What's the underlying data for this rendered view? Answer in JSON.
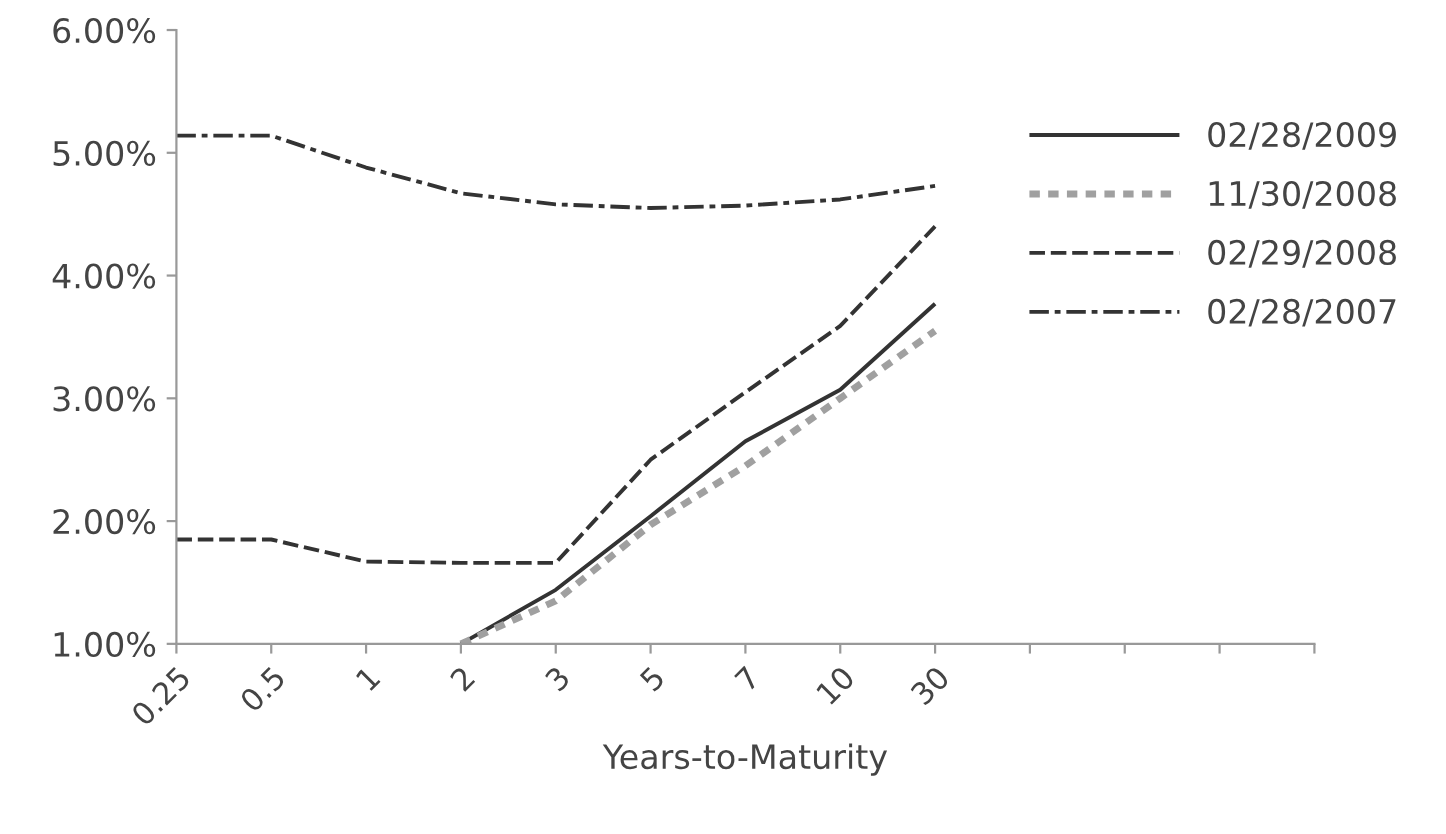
{
  "chart_data": {
    "type": "line",
    "xlabel": "Years-to-Maturity",
    "categories": [
      "0.25",
      "0.5",
      "1",
      "2",
      "3",
      "5",
      "7",
      "10",
      "30",
      null,
      null,
      null,
      null
    ],
    "series": [
      {
        "name": "02/28/2009",
        "color": "#333333",
        "line_style": "solid",
        "values": [
          null,
          null,
          null,
          1.0,
          1.44,
          2.04,
          2.65,
          3.07,
          3.77,
          null,
          null,
          null,
          null
        ]
      },
      {
        "name": "11/30/2008",
        "color": "#a0a0a0",
        "line_style": "dotted",
        "values": [
          null,
          null,
          null,
          1.0,
          1.35,
          1.97,
          2.45,
          3.0,
          3.55,
          null,
          null,
          null,
          null
        ]
      },
      {
        "name": "02/29/2008",
        "color": "#333333",
        "line_style": "dashed",
        "values": [
          1.85,
          1.85,
          1.67,
          1.66,
          1.66,
          2.5,
          3.05,
          3.59,
          4.4,
          null,
          null,
          null,
          null
        ]
      },
      {
        "name": "02/28/2007",
        "color": "#333333",
        "line_style": "dashdot",
        "values": [
          5.14,
          5.14,
          4.88,
          4.67,
          4.58,
          4.55,
          4.57,
          4.62,
          4.73,
          null,
          null,
          null,
          null
        ]
      }
    ],
    "ylim": [
      1,
      6
    ],
    "yticks": [
      {
        "value": 1,
        "label": "1.00%"
      },
      {
        "value": 2,
        "label": "2.00%"
      },
      {
        "value": 3,
        "label": "3.00%"
      },
      {
        "value": 4,
        "label": "4.00%"
      },
      {
        "value": 5,
        "label": "5.00%"
      },
      {
        "value": 6,
        "label": "6.00%"
      }
    ],
    "grid": false,
    "legend": "right",
    "marker": "none"
  }
}
